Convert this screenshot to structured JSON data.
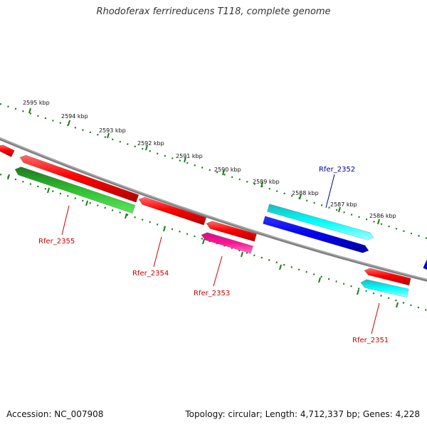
{
  "title": "Rhodoferax ferrireducens T118, complete genome",
  "footer": {
    "accession": "Accession: NC_007908",
    "summary": "Topology: circular; Length: 4,712,337 bp; Genes: 4,228"
  },
  "colors": {
    "backbone": "#808080",
    "ruler": "#1a7a1a",
    "label_red": "#cc0000",
    "label_blue": "#000099"
  },
  "ruler_ticks": [
    "2595 kbp",
    "2594 kbp",
    "2593 kbp",
    "2592 kbp",
    "2591 kbp",
    "2590 kbp",
    "2589 kbp",
    "2588 kbp",
    "2587 kbp",
    "2586 kbp"
  ],
  "genes": [
    {
      "name": "",
      "color": "red",
      "strand": "-"
    },
    {
      "name": "",
      "color": "red",
      "strand": "-"
    },
    {
      "name": "",
      "color": "green",
      "strand": "-"
    },
    {
      "name": "",
      "color": "red",
      "strand": "-"
    },
    {
      "name": "",
      "color": "red",
      "strand": "-"
    },
    {
      "name": "",
      "color": "magenta",
      "strand": "-"
    },
    {
      "name": "",
      "color": "cyan",
      "strand": "+"
    },
    {
      "name": "",
      "color": "blue",
      "strand": "+"
    },
    {
      "name": "",
      "color": "red",
      "strand": "-"
    },
    {
      "name": "",
      "color": "cyan",
      "strand": "-"
    },
    {
      "name": "",
      "color": "blue",
      "strand": "+"
    }
  ],
  "gene_labels": [
    {
      "text": "Rfer_2355",
      "color": "red"
    },
    {
      "text": "Rfer_2354",
      "color": "red"
    },
    {
      "text": "Rfer_2353",
      "color": "red"
    },
    {
      "text": "Rfer_2352",
      "color": "blue"
    },
    {
      "text": "Rfer_2351",
      "color": "red"
    }
  ]
}
